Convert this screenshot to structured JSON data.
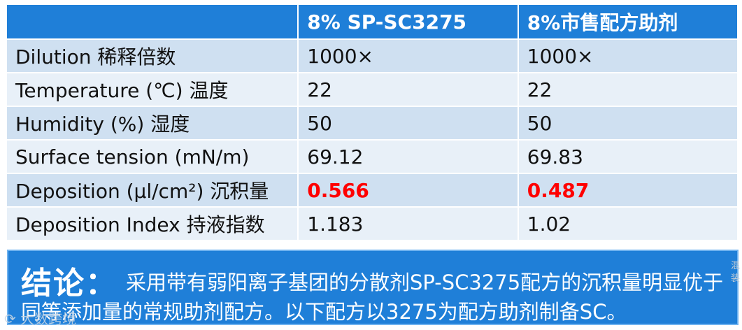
{
  "table": {
    "header": [
      "",
      "8% SP-SC3275",
      "8%市售配方助剂"
    ],
    "rows": [
      {
        "label": "Dilution 稀释倍数",
        "a": "1000×",
        "b": "1000×"
      },
      {
        "label": "Temperature (℃) 温度",
        "a": "22",
        "b": "22"
      },
      {
        "label": "Humidity (%) 湿度",
        "a": "50",
        "b": "50"
      },
      {
        "label": "Surface tension (mN/m)",
        "a": "69.12",
        "b": "69.83"
      },
      {
        "label": "Deposition (μl/cm²) 沉积量",
        "a": "0.566",
        "b": "0.487"
      },
      {
        "label": "Deposition Index 持液指数",
        "a": "1.183",
        "b": "1.02"
      }
    ]
  },
  "conclusion": {
    "label": "结论：",
    "line1": "采用带有弱阳离子基团的分散剂SP-SC3275配方的沉积量明显优于",
    "line2": "同等添加量的常规助剂配方。以下配方以3275为配方助剂制备SC。"
  },
  "watermark": "大数跨境",
  "side_watermark": "混装",
  "colors": {
    "header_bg": "#1f7fd8",
    "row_a": "#cfe0f1",
    "row_b": "#e8f0f8",
    "highlight": "#ff0000"
  }
}
